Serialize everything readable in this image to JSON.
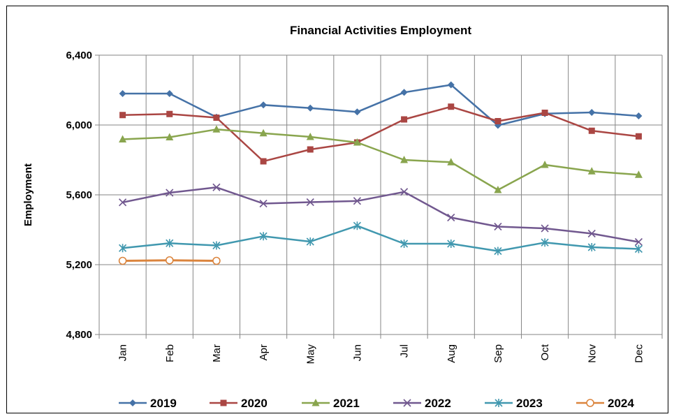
{
  "chart_data": {
    "type": "line",
    "title": "Financial Activities Employment",
    "xlabel": "",
    "ylabel": "Employment",
    "categories": [
      "Jan",
      "Feb",
      "Mar",
      "Apr",
      "May",
      "Jun",
      "Jul",
      "Aug",
      "Sep",
      "Oct",
      "Nov",
      "Dec"
    ],
    "ylim": [
      4800,
      6400
    ],
    "yticks": [
      4800,
      5200,
      5600,
      6000,
      6400
    ],
    "ytick_labels": [
      "4,800",
      "5,200",
      "5,600",
      "6,000",
      "6,400"
    ],
    "grid": true,
    "legend": "bottom",
    "series": [
      {
        "name": "2019",
        "color": "#4572A7",
        "marker": "diamond",
        "values": [
          6180,
          6180,
          6045,
          6115,
          6097,
          6075,
          6187,
          6230,
          5998,
          6065,
          6072,
          6052
        ]
      },
      {
        "name": "2020",
        "color": "#AA4643",
        "marker": "square",
        "values": [
          6057,
          6063,
          6042,
          5792,
          5860,
          5900,
          6032,
          6105,
          6022,
          6070,
          5967,
          5935
        ]
      },
      {
        "name": "2021",
        "color": "#89A54E",
        "marker": "triangle",
        "values": [
          5918,
          5930,
          5975,
          5953,
          5932,
          5900,
          5800,
          5787,
          5628,
          5772,
          5735,
          5715
        ]
      },
      {
        "name": "2022",
        "color": "#71588F",
        "marker": "x",
        "values": [
          5557,
          5612,
          5643,
          5550,
          5558,
          5565,
          5617,
          5470,
          5418,
          5408,
          5378,
          5330
        ]
      },
      {
        "name": "2023",
        "color": "#4198AF",
        "marker": "star",
        "values": [
          5295,
          5323,
          5310,
          5363,
          5332,
          5423,
          5320,
          5320,
          5278,
          5327,
          5300,
          5290
        ]
      },
      {
        "name": "2024",
        "color": "#DB843D",
        "marker": "circle",
        "values": [
          5222,
          5225,
          5222,
          null,
          null,
          null,
          null,
          null,
          null,
          null,
          null,
          null
        ]
      }
    ]
  }
}
